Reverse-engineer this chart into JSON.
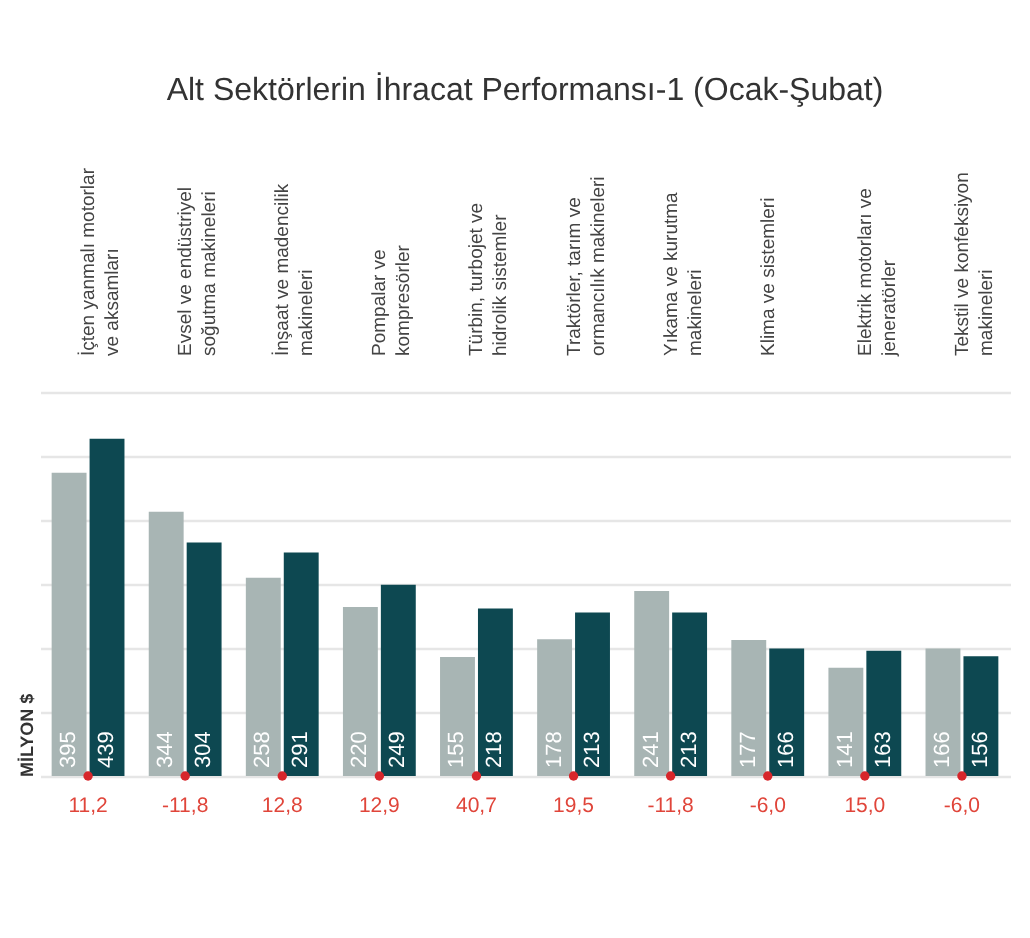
{
  "chart_data": {
    "type": "bar",
    "title": "Alt Sektörlerin İhracat Performansı-1 (Ocak-Şubat)",
    "ylabel": "MİLYON $",
    "categories": [
      "İçten yanmalı motorlar ve aksamları",
      "Evsel ve endüstriyel soğutma makineleri",
      "İnşaat ve madencilik makineleri",
      "Pompalar ve kompresörler",
      "Türbin, turbojet ve hidrolik sistemler",
      "Traktörler, tarım ve ormancılık makineleri",
      "Yıkama ve kurutma makineleri",
      "Klima ve sistemleri",
      "Elektrik motorları ve jeneratörler",
      "Tekstil ve konfeksiyon makineleri"
    ],
    "series": [
      {
        "color": "#a8b5b4",
        "values": [
          395,
          344,
          258,
          220,
          155,
          178,
          241,
          177,
          141,
          166
        ]
      },
      {
        "color": "#0d4851",
        "values": [
          439,
          304,
          291,
          249,
          218,
          213,
          213,
          166,
          163,
          156
        ]
      },
      {
        "type": "scatter",
        "color": "#d7262b",
        "values": [
          0,
          0,
          0,
          0,
          0,
          0,
          0,
          0,
          0,
          0
        ],
        "value_labels": [
          null,
          null,
          null,
          null,
          null,
          null,
          null,
          null,
          null,
          null
        ]
      }
    ],
    "ylim": [
      0,
      500
    ],
    "yticks": [
      {
        "value": 0,
        "label": null
      },
      {
        "value": 83,
        "label": null
      },
      {
        "value": 167,
        "label": null
      },
      {
        "value": 250,
        "label": null
      },
      {
        "value": 333,
        "label": null
      },
      {
        "value": 417,
        "label": null
      },
      {
        "value": 500,
        "label": null
      }
    ],
    "grid": "y",
    "tick_labels": "x",
    "data_labels": true,
    "annotations": [
      {
        "text": "11,2",
        "x": "İçten yanmalı motorlar ve aksamları",
        "y": 0
      },
      {
        "text": "-11,8",
        "x": "Evsel ve endüstriyel soğutma makineleri",
        "y": 0
      },
      {
        "text": "12,8",
        "x": "İnşaat ve madencilik makineleri",
        "y": 0
      },
      {
        "text": "12,9",
        "x": "Pompalar ve kompresörler",
        "y": 0
      },
      {
        "text": "40,7",
        "x": "Türbin, turbojet ve hidrolik sistemler",
        "y": 0
      },
      {
        "text": "19,5",
        "x": "Traktörler, tarım ve ormancılık makineleri",
        "y": 0
      },
      {
        "text": "-11,8",
        "x": "Yıkama ve kurutma makineleri",
        "y": 0
      },
      {
        "text": "-6,0",
        "x": "Klima ve sistemleri",
        "y": 0
      },
      {
        "text": "15,0",
        "x": "Elektrik motorları ve jeneratörler",
        "y": 0
      },
      {
        "text": "-6,0",
        "x": "Tekstil ve konfeksiyon makineleri",
        "y": 0
      }
    ]
  }
}
